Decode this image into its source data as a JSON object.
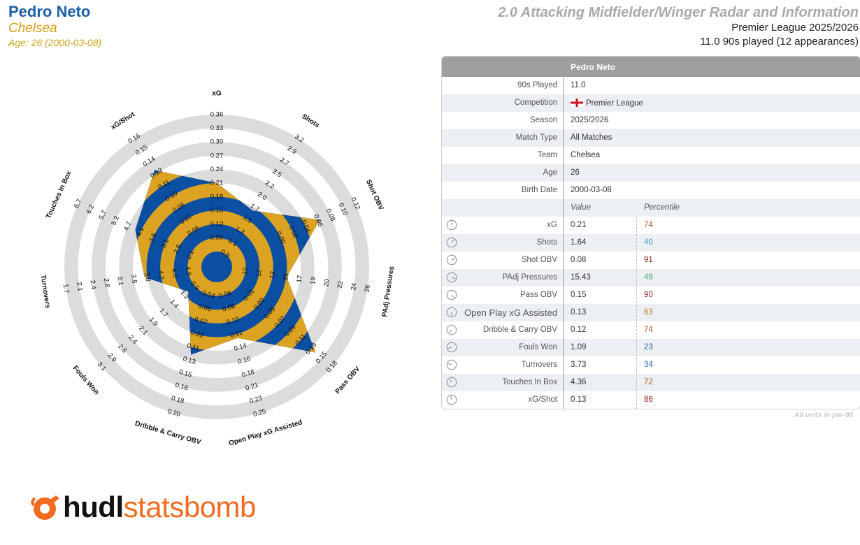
{
  "header": {
    "player_name": "Pedro Neto",
    "team": "Chelsea",
    "age_line": "Age: 26 (2000-03-08)",
    "report_title": "2.0 Attacking Midfielder/Winger Radar and Information",
    "competition_line": "Premier League 2025/2026",
    "minutes_line": "11.0 90s played (12 appearances)"
  },
  "colors": {
    "blue": "#0b4fa3",
    "gold": "#dba321",
    "ring_grey": "#dcdcdc",
    "title_blue": "#1f5fa8",
    "logo_orange": "#f26b21"
  },
  "chart_data": {
    "type": "radar",
    "axes": [
      {
        "label": "xG",
        "ticks": [
          "0.09",
          "0.12",
          "0.15",
          "0.18",
          "0.21",
          "0.24",
          "0.27",
          "0.30",
          "0.33",
          "0.36"
        ],
        "min": 0.06,
        "max": 0.36,
        "value": 0.21
      },
      {
        "label": "Shots",
        "ticks": [
          "0.9",
          "1.1",
          "1.3",
          "1.5",
          "1.7",
          "2.0",
          "2.2",
          "2.5",
          "2.7",
          "2.9",
          "3.2"
        ],
        "min": 0.7,
        "max": 3.2,
        "value": 1.64
      },
      {
        "label": "Shot OBV",
        "ticks": [
          "0.00",
          "0.02",
          "0.04",
          "0.06",
          "0.08",
          "0.10",
          "0.12"
        ],
        "min": -0.02,
        "max": 0.12,
        "value": 0.08
      },
      {
        "label": "PAdj Pressures",
        "ticks": [
          "10",
          "12",
          "13",
          "15",
          "17",
          "19",
          "20",
          "22",
          "24",
          "26"
        ],
        "min": 8.3,
        "max": 26,
        "value": 15.43
      },
      {
        "label": "Pass OBV",
        "ticks": [
          "0.01",
          "0.03",
          "0.05",
          "0.07",
          "0.09",
          "0.11",
          "0.13",
          "0.15",
          "0.18"
        ],
        "min": -0.01,
        "max": 0.18,
        "value": 0.15
      },
      {
        "label": "Open Play xG Assisted",
        "ticks": [
          "0.06",
          "0.08",
          "0.10",
          "0.12",
          "0.14",
          "0.16",
          "0.18",
          "0.21",
          "0.23",
          "0.25"
        ],
        "min": 0.04,
        "max": 0.25,
        "value": 0.13
      },
      {
        "label": "Dribble & Carry OBV",
        "ticks": [
          "0.04",
          "0.06",
          "0.07",
          "0.09",
          "0.11",
          "0.13",
          "0.15",
          "0.16",
          "0.18",
          "0.20"
        ],
        "min": 0.02,
        "max": 0.2,
        "value": 0.12
      },
      {
        "label": "Fouls Won",
        "ticks": [
          "0.9",
          "1.2",
          "1.4",
          "1.7",
          "1.9",
          "2.1",
          "2.4",
          "2.6",
          "2.9",
          "3.1"
        ],
        "min": 0.7,
        "max": 3.1,
        "value": 1.09
      },
      {
        "label": "Turnovers",
        "ticks": [
          "4.9",
          "4.5",
          "4.2",
          "3.8",
          "3.5",
          "3.1",
          "2.8",
          "2.4",
          "2.1",
          "1.7"
        ],
        "min": 5.2,
        "max": 1.7,
        "value": 3.73
      },
      {
        "label": "Touches In Box",
        "ticks": [
          "2.1",
          "2.6",
          "3.1",
          "3.6",
          "4.1",
          "4.7",
          "5.2",
          "5.7",
          "6.2",
          "6.7"
        ],
        "min": 1.6,
        "max": 6.7,
        "value": 4.36
      },
      {
        "label": "xG/Shot",
        "ticks": [
          "0.06",
          "0.07",
          "0.08",
          "0.10",
          "0.11",
          "0.13",
          "0.14",
          "0.15",
          "0.16"
        ],
        "min": 0.05,
        "max": 0.16,
        "value": 0.13
      }
    ]
  },
  "table": {
    "title": "Pedro Neto",
    "info_rows": [
      {
        "label": "90s Played",
        "value": "11.0"
      },
      {
        "label": "Competition",
        "value": "Premier League",
        "flag": true
      },
      {
        "label": "Season",
        "value": "2025/2026"
      },
      {
        "label": "Match Type",
        "value": "All Matches"
      },
      {
        "label": "Team",
        "value": "Chelsea"
      },
      {
        "label": "Age",
        "value": "26"
      },
      {
        "label": "Birth Date",
        "value": "2000-03-08"
      }
    ],
    "value_header": "Value",
    "percentile_header": "Percentile",
    "stat_rows": [
      {
        "label": "xG",
        "value": "0.21",
        "pct": "74",
        "pct_color": "#b5531f"
      },
      {
        "label": "Shots",
        "value": "1.64",
        "pct": "40",
        "pct_color": "#2aa0b0"
      },
      {
        "label": "Shot OBV",
        "value": "0.08",
        "pct": "91",
        "pct_color": "#9b1c1c"
      },
      {
        "label": "PAdj Pressures",
        "value": "15.43",
        "pct": "48",
        "pct_color": "#3fae7a"
      },
      {
        "label": "Pass OBV",
        "value": "0.15",
        "pct": "90",
        "pct_color": "#9b1c1c"
      },
      {
        "label": "Open Play xG Assisted",
        "value": "0.13",
        "pct": "63",
        "pct_color": "#c07a18"
      },
      {
        "label": "Dribble & Carry OBV",
        "value": "0.12",
        "pct": "74",
        "pct_color": "#b5531f"
      },
      {
        "label": "Fouls Won",
        "value": "1.09",
        "pct": "23",
        "pct_color": "#2a66a8"
      },
      {
        "label": "Turnovers",
        "value": "3.73",
        "pct": "34",
        "pct_color": "#2a66a8"
      },
      {
        "label": "Touches In Box",
        "value": "4.36",
        "pct": "72",
        "pct_color": "#b5531f"
      },
      {
        "label": "xG/Shot",
        "value": "0.13",
        "pct": "86",
        "pct_color": "#9b1c1c"
      }
    ],
    "footnote": "All units in per-90"
  },
  "logo": {
    "bold": "hudl",
    "light": "statsbomb",
    "icon": "statsbomb-bomb-icon"
  }
}
